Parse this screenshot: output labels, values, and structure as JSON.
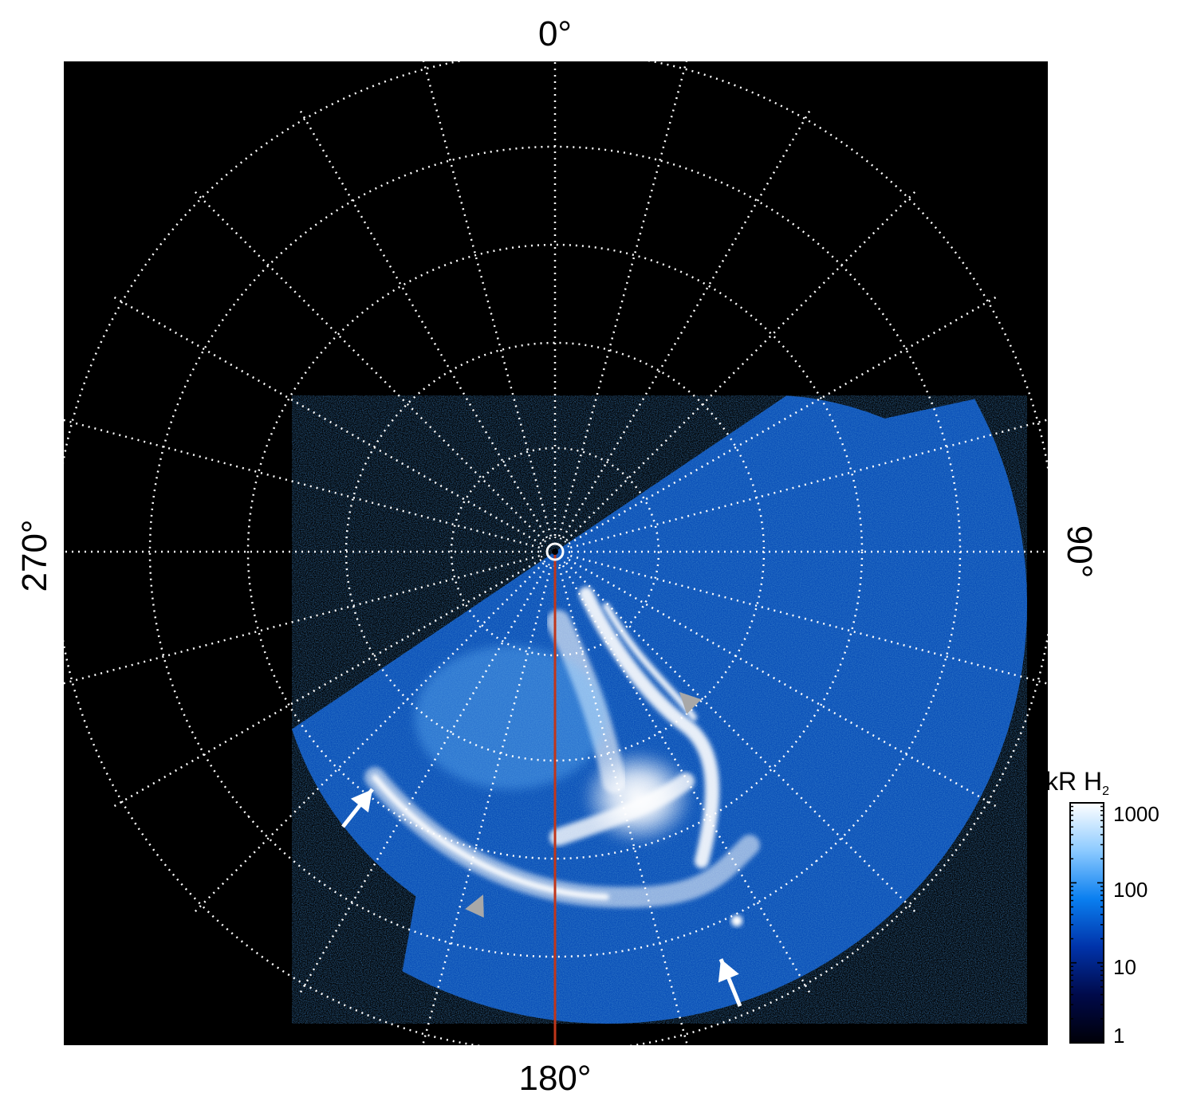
{
  "labels": {
    "top": "0°",
    "bottom": "180°",
    "left": "270°",
    "right": "90°"
  },
  "colorbar": {
    "title_main": "kR H",
    "title_sub": "2",
    "ticks": [
      "1000",
      "100",
      "10",
      "1"
    ],
    "colors": [
      "#000008",
      "#000a4a",
      "#0033aa",
      "#0a7ff0",
      "#8ccaff",
      "#ffffff"
    ]
  },
  "colors": {
    "background": "#000000",
    "grid": "#ffffff",
    "meridian_line": "#c0361a",
    "arrow_white": "#ffffff",
    "arrow_gray": "#a8a8a8"
  },
  "icons": [
    "arrow-icon",
    "arrowhead-icon",
    "pole-marker-icon"
  ]
}
